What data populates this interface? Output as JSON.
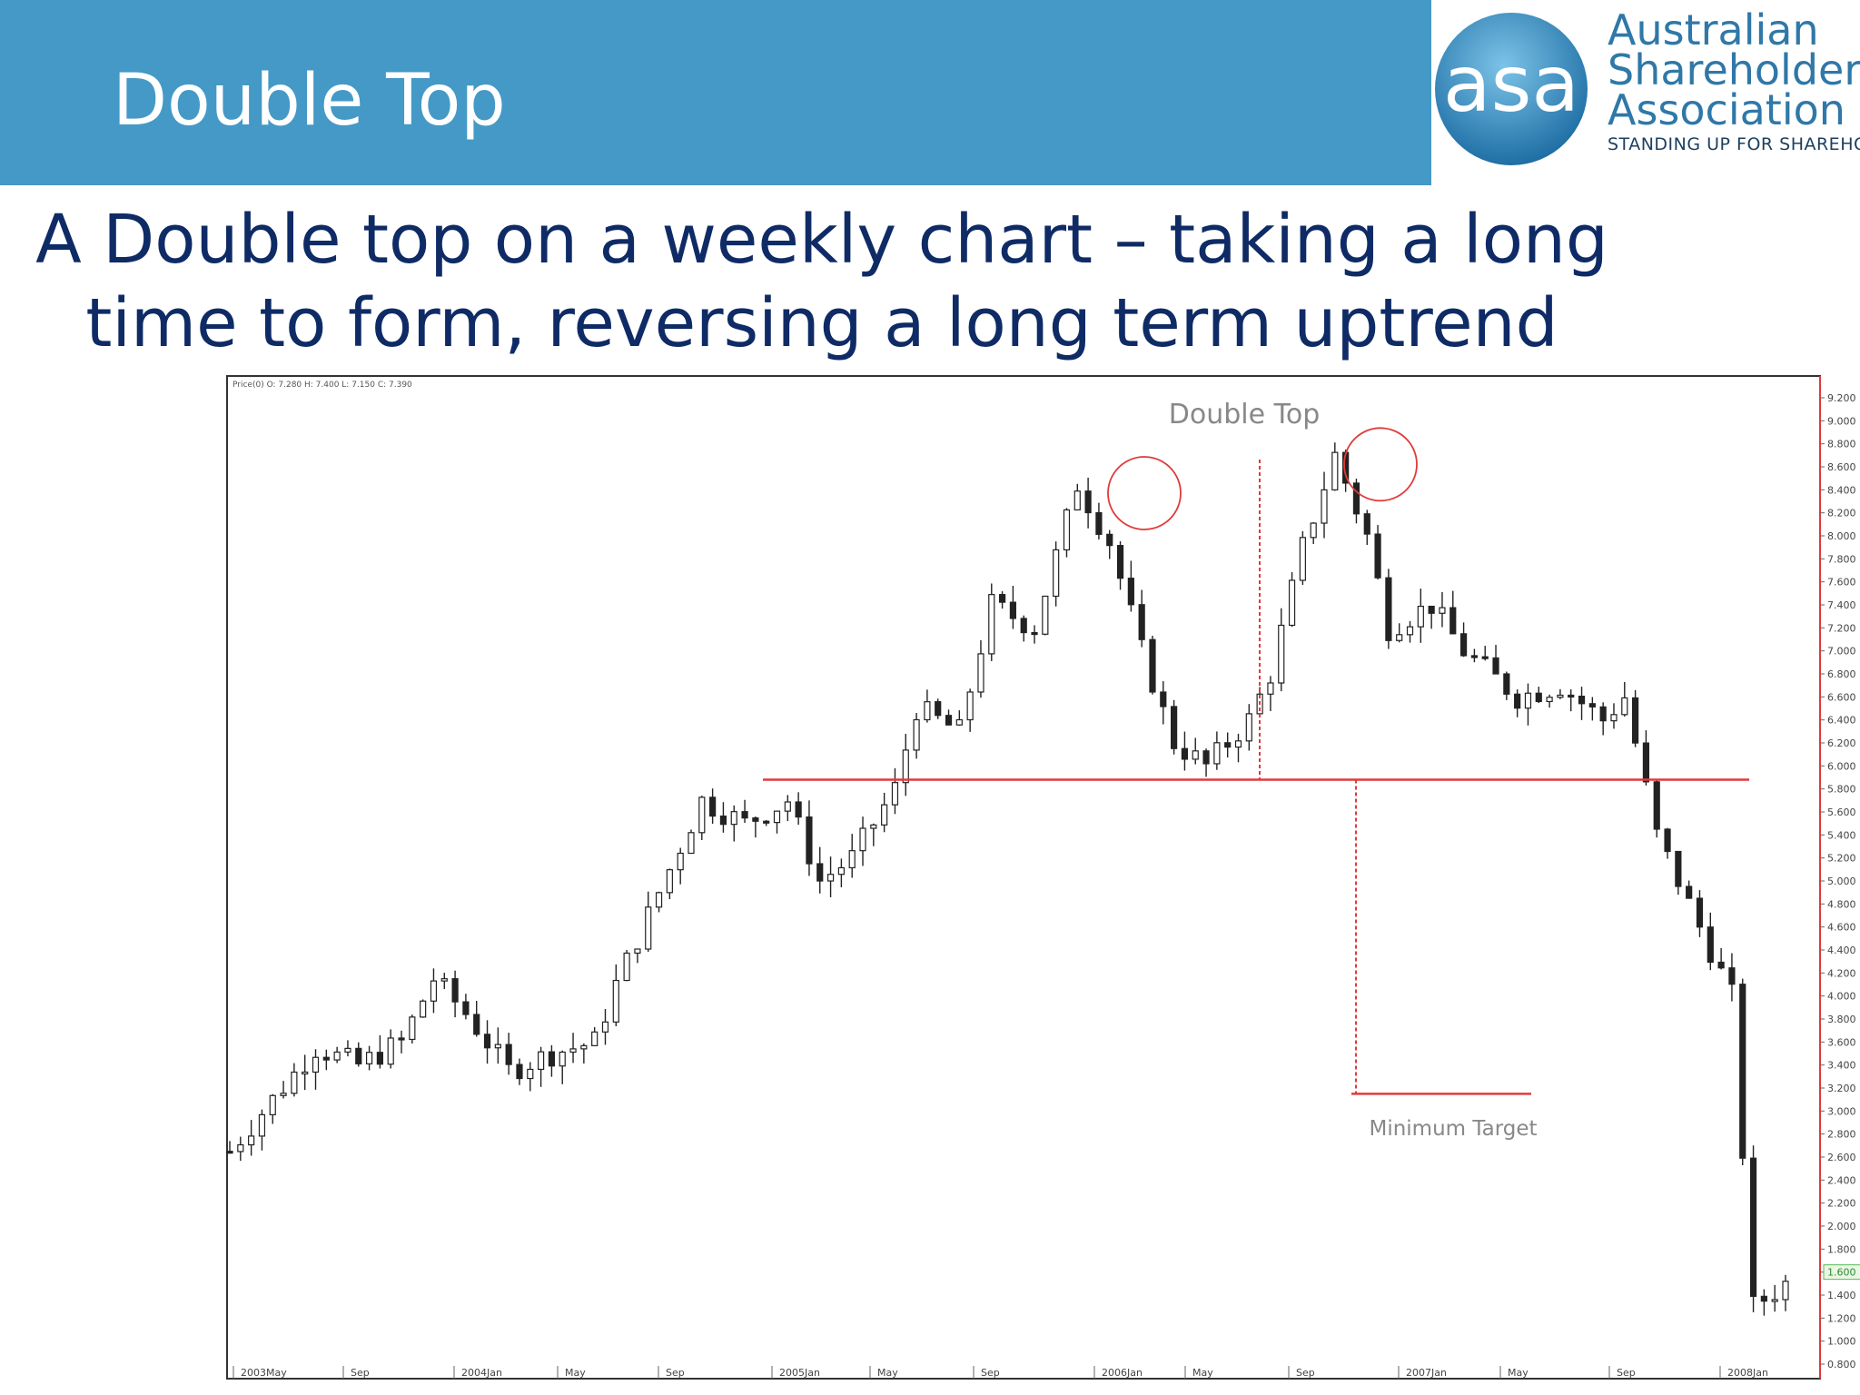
{
  "slide": {
    "title": "Double Top",
    "subtitle_line1": "A Double top on a weekly chart – taking a long",
    "subtitle_line2": "time to form, reversing a long term uptrend"
  },
  "logo": {
    "abbrev": "asa",
    "line1": "Australian",
    "line2": "Shareholders'",
    "line3": "Association",
    "tagline": "STANDING UP FOR SHAREHOLDERS"
  },
  "colors": {
    "header": "#4499c6",
    "subtitle": "#0f2b66",
    "annotation": "#e03a3a",
    "candle": "#222222"
  },
  "chart_data": {
    "type": "candlestick",
    "header_readout": "Price(0)  O: 7.280  H: 7.400  L: 7.150  C: 7.390",
    "annotation_title": "Double Top",
    "annotation_target": "Minimum Target",
    "x_tick_labels": [
      "2003May",
      "Sep",
      "2004Jan",
      "May",
      "Sep",
      "2005Jan",
      "May",
      "Sep",
      "2006Jan",
      "May",
      "Sep",
      "2007Jan",
      "May",
      "Sep",
      "2008Jan"
    ],
    "y_tick_labels": [
      "9.200",
      "9.000",
      "8.800",
      "8.600",
      "8.400",
      "8.200",
      "8.000",
      "7.800",
      "7.600",
      "7.400",
      "7.200",
      "7.000",
      "6.800",
      "6.600",
      "6.400",
      "6.200",
      "6.000",
      "5.800",
      "5.600",
      "5.400",
      "5.200",
      "5.000",
      "4.800",
      "4.600",
      "4.400",
      "4.200",
      "4.000",
      "3.800",
      "3.600",
      "3.400",
      "3.200",
      "3.000",
      "2.800",
      "2.600",
      "2.400",
      "2.200",
      "2.000",
      "1.800",
      "1.600",
      "1.400",
      "1.200",
      "1.000",
      "0.800"
    ],
    "ylim": [
      0.8,
      9.2
    ],
    "last_price_label": "1.600",
    "neckline": 5.88,
    "peaks": [
      8.45,
      8.7
    ],
    "minimum_target": 3.15,
    "price_path": [
      [
        0,
        2.65
      ],
      [
        4,
        3.1
      ],
      [
        8,
        3.55
      ],
      [
        12,
        3.4
      ],
      [
        16,
        3.6
      ],
      [
        19,
        4.15
      ],
      [
        22,
        3.85
      ],
      [
        26,
        3.35
      ],
      [
        30,
        3.5
      ],
      [
        34,
        3.6
      ],
      [
        36,
        4.1
      ],
      [
        40,
        4.9
      ],
      [
        44,
        5.7
      ],
      [
        48,
        5.5
      ],
      [
        52,
        5.7
      ],
      [
        55,
        5.0
      ],
      [
        58,
        5.2
      ],
      [
        62,
        5.8
      ],
      [
        64,
        6.5
      ],
      [
        68,
        6.3
      ],
      [
        71,
        7.4
      ],
      [
        75,
        7.2
      ],
      [
        79,
        8.45
      ],
      [
        82,
        7.95
      ],
      [
        85,
        7.0
      ],
      [
        88,
        6.2
      ],
      [
        91,
        6.0
      ],
      [
        95,
        6.4
      ],
      [
        97,
        6.8
      ],
      [
        100,
        7.9
      ],
      [
        103,
        8.7
      ],
      [
        106,
        8.0
      ],
      [
        108,
        7.2
      ],
      [
        112,
        7.4
      ],
      [
        115,
        7.0
      ],
      [
        120,
        6.6
      ],
      [
        124,
        6.7
      ],
      [
        128,
        6.4
      ],
      [
        130,
        6.6
      ],
      [
        133,
        5.4
      ],
      [
        137,
        4.6
      ],
      [
        140,
        4.0
      ],
      [
        142,
        1.3
      ],
      [
        145,
        1.5
      ]
    ]
  }
}
